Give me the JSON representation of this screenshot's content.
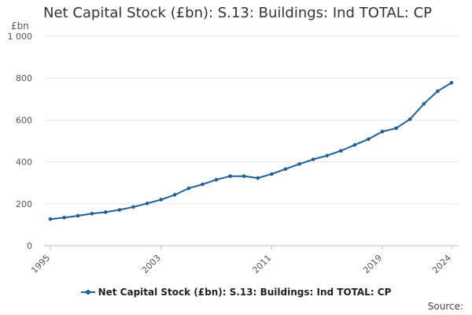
{
  "colors": {
    "series": "#206095",
    "grid": "#e6e6e6",
    "axis": "#666666"
  },
  "chart_data": {
    "type": "line",
    "title": "Net Capital Stock (£bn): S.13: Buildings: Ind TOTAL: CP",
    "ylabel": "£bn",
    "xlabel": "",
    "xlim": [
      1995,
      2024
    ],
    "ylim": [
      0,
      1000
    ],
    "yticks": [
      0,
      200,
      400,
      600,
      800,
      1000
    ],
    "ytick_labels": [
      "0",
      "200",
      "400",
      "600",
      "800",
      "1 000"
    ],
    "xticks": [
      1995,
      2003,
      2011,
      2019,
      2024
    ],
    "grid": true,
    "legend_position": "bottom",
    "series": [
      {
        "name": "Net Capital Stock (£bn): S.13: Buildings: Ind TOTAL: CP",
        "x": [
          1995,
          1996,
          1997,
          1998,
          1999,
          2000,
          2001,
          2002,
          2003,
          2004,
          2005,
          2006,
          2007,
          2008,
          2009,
          2010,
          2011,
          2012,
          2013,
          2014,
          2015,
          2016,
          2017,
          2018,
          2019,
          2020,
          2021,
          2022,
          2023,
          2024
        ],
        "values": [
          127,
          134,
          143,
          153,
          160,
          171,
          185,
          202,
          220,
          243,
          274,
          293,
          315,
          332,
          332,
          323,
          342,
          366,
          390,
          412,
          430,
          453,
          481,
          509,
          545,
          561,
          604,
          677,
          738,
          778
        ]
      }
    ]
  },
  "legend": {
    "label": "Net Capital Stock (£bn): S.13: Buildings: Ind TOTAL: CP"
  },
  "footer": {
    "source": "Source:"
  }
}
